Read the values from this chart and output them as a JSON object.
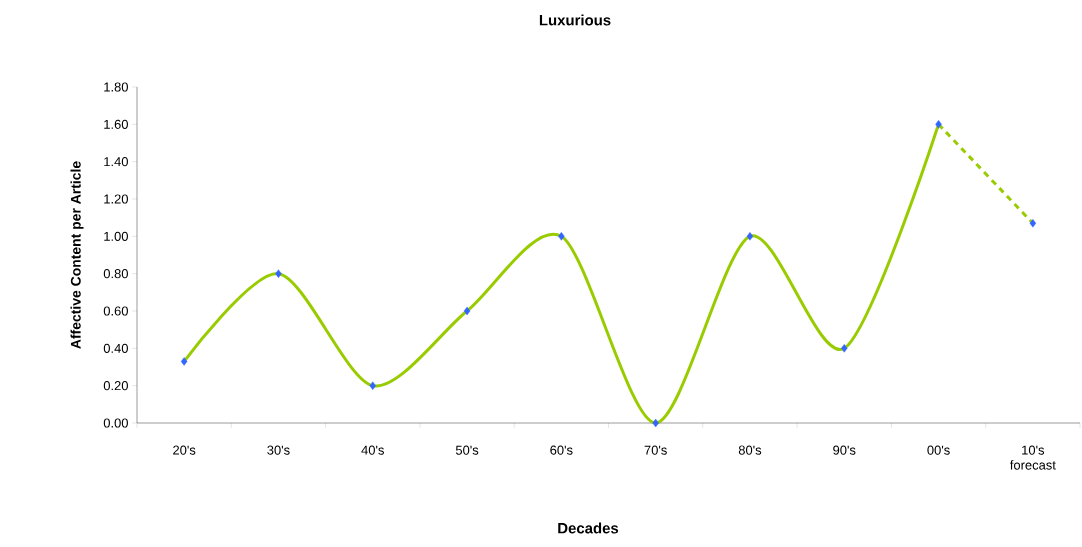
{
  "chart_data": {
    "type": "line",
    "title": "Luxurious",
    "xlabel": "Decades",
    "ylabel": "Affective Content per Article",
    "categories": [
      "20's",
      "30's",
      "40's",
      "50's",
      "60's",
      "70's",
      "80's",
      "90's",
      "00's",
      "10's forecast"
    ],
    "series": [
      {
        "color": "#99cc00",
        "line_style": "solid",
        "marker": "none",
        "values": [
          0.33,
          0.8,
          0.2,
          0.6,
          1.0,
          0.0,
          1.0,
          0.4,
          1.6,
          null
        ]
      },
      {
        "color": "#99cc00",
        "line_style": "dashed",
        "marker": "none",
        "values": [
          null,
          null,
          null,
          null,
          null,
          null,
          null,
          null,
          1.6,
          1.07
        ]
      },
      {
        "type": "scatter",
        "color": "#3366ff",
        "marker": "diamond",
        "values": [
          0.33,
          0.8,
          0.2,
          0.6,
          1.0,
          0.0,
          1.0,
          0.4,
          1.6,
          1.07
        ]
      }
    ],
    "ylim": [
      0,
      1.8
    ],
    "yticks": [
      {
        "value": 0,
        "label": "0.00"
      },
      {
        "value": 0.2,
        "label": "0.20"
      },
      {
        "value": 0.4,
        "label": "0.40"
      },
      {
        "value": 0.6,
        "label": "0.60"
      },
      {
        "value": 0.8,
        "label": "0.80"
      },
      {
        "value": 1.0,
        "label": "1.00"
      },
      {
        "value": 1.2,
        "label": "1.20"
      },
      {
        "value": 1.4,
        "label": "1.40"
      },
      {
        "value": 1.6,
        "label": "1.60"
      },
      {
        "value": 1.8,
        "label": "1.80"
      }
    ]
  }
}
